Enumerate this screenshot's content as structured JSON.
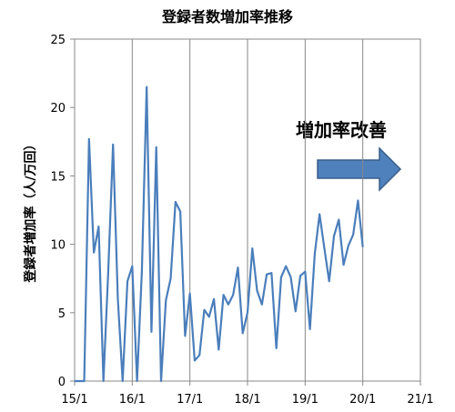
{
  "chart_data": {
    "type": "line",
    "title": "登録者数増加率推移",
    "y_label": "登録者増加率（人/万回）",
    "annotation": "増加率改善",
    "x": [
      "15/1",
      "15/2",
      "15/3",
      "15/4",
      "15/5",
      "15/6",
      "15/7",
      "15/8",
      "15/9",
      "15/10",
      "15/11",
      "15/12",
      "16/1",
      "16/2",
      "16/3",
      "16/4",
      "16/5",
      "16/6",
      "16/7",
      "16/8",
      "16/9",
      "16/10",
      "16/11",
      "16/12",
      "17/1",
      "17/2",
      "17/3",
      "17/4",
      "17/5",
      "17/6",
      "17/7",
      "17/8",
      "17/9",
      "17/10",
      "17/11",
      "17/12",
      "18/1",
      "18/2",
      "18/3",
      "18/4",
      "18/5",
      "18/6",
      "18/7",
      "18/8",
      "18/9",
      "18/10",
      "18/11",
      "18/12",
      "19/1",
      "19/2",
      "19/3",
      "19/4",
      "19/5",
      "19/6",
      "19/7",
      "19/8",
      "19/9",
      "19/10",
      "19/11",
      "19/12",
      "20/1"
    ],
    "series": [
      {
        "name": "登録者増加率",
        "color": "#4a7ebb",
        "values": [
          0,
          0,
          0,
          17.7,
          9.4,
          11.3,
          0,
          8,
          17.3,
          6,
          0,
          7.3,
          8.4,
          0,
          8,
          21.5,
          3.6,
          17.1,
          0,
          5.9,
          7.5,
          13.1,
          12.4,
          3.3,
          6.4,
          1.5,
          1.9,
          5.2,
          4.7,
          6,
          2.3,
          6.3,
          5.6,
          6.3,
          8.3,
          3.5,
          5,
          9.7,
          6.6,
          5.6,
          7.8,
          7.9,
          2.4,
          7.6,
          8.4,
          7.6,
          5.1,
          7.7,
          8,
          3.8,
          9.3,
          12.2,
          9.7,
          7.3,
          10.6,
          11.8,
          8.5,
          9.9,
          10.7,
          13.2,
          9.8
        ]
      }
    ],
    "xticks": [
      "15/1",
      "16/1",
      "17/1",
      "18/1",
      "19/1",
      "20/1",
      "21/1"
    ],
    "ylim": [
      0,
      25
    ],
    "yticks": [
      0,
      5,
      10,
      15,
      20,
      25
    ],
    "grid": "x"
  }
}
